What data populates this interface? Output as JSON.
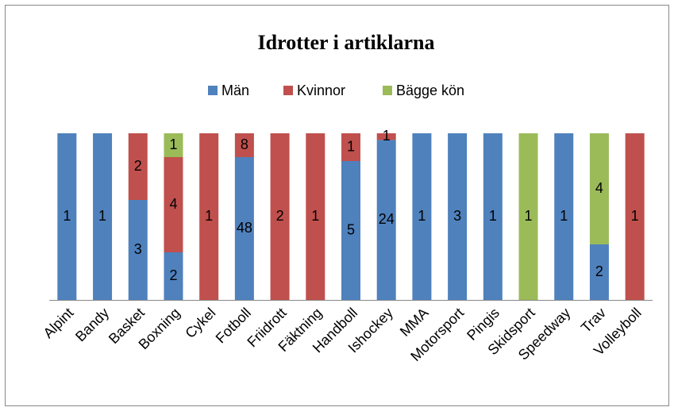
{
  "chart_data": {
    "type": "stacked_percent_bar",
    "title": "Idrotter i artiklarna",
    "categories": [
      "Alpint",
      "Bandy",
      "Basket",
      "Boxning",
      "Cykel",
      "Fotboll",
      "Friidrott",
      "Fäktning",
      "Handboll",
      "Ishockey",
      "MMA",
      "Motorsport",
      "Pingis",
      "Skidsport",
      "Speedway",
      "Trav",
      "Volleyboll"
    ],
    "series": [
      {
        "name": "Män",
        "color": "#4f81bd",
        "values": [
          1,
          1,
          3,
          2,
          0,
          48,
          0,
          0,
          5,
          24,
          1,
          3,
          1,
          0,
          1,
          2,
          0
        ]
      },
      {
        "name": "Kvinnor",
        "color": "#c0504d",
        "values": [
          0,
          0,
          2,
          4,
          1,
          8,
          2,
          1,
          1,
          1,
          0,
          0,
          0,
          0,
          0,
          0,
          1
        ]
      },
      {
        "name": "Bägge kön",
        "color": "#9bbb59",
        "values": [
          0,
          0,
          0,
          1,
          0,
          0,
          0,
          0,
          0,
          0,
          0,
          0,
          0,
          1,
          0,
          4,
          0
        ]
      }
    ],
    "legend": "top"
  }
}
